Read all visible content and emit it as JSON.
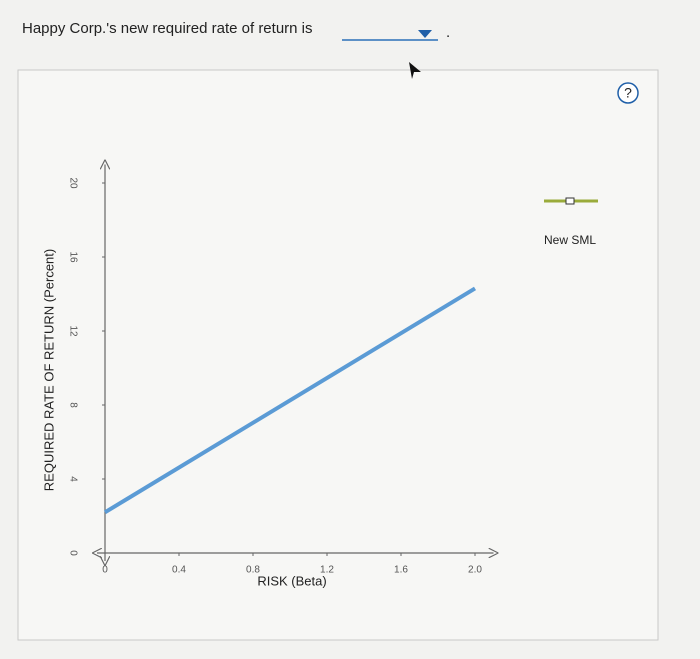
{
  "question": {
    "text": "Happy Corp.'s new required rate of return is",
    "end": "."
  },
  "chart_data": {
    "type": "line",
    "xlabel": "RISK (Beta)",
    "ylabel": "REQUIRED RATE OF RETURN (Percent)",
    "x": [
      0,
      2
    ],
    "series": [
      {
        "name": "New SML",
        "color": "#5b9bd5",
        "values": [
          2.2,
          14.3
        ]
      }
    ],
    "legend_marker_color": "#9aab3a",
    "xlim": [
      0,
      2.1
    ],
    "ylim": [
      0,
      21
    ],
    "xticks": [
      0,
      0.4,
      0.8,
      1.2,
      1.6,
      {
        "value": 2,
        "label": "2.0"
      }
    ],
    "yticks": [
      0,
      4,
      8,
      12,
      16,
      20
    ],
    "legend": "top-right"
  }
}
